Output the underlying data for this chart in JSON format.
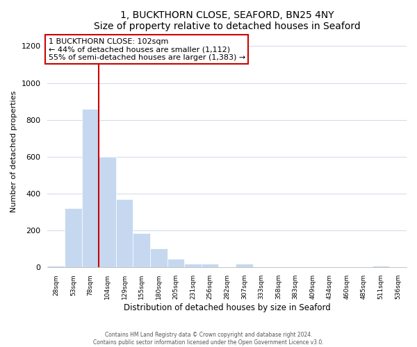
{
  "title": "1, BUCKTHORN CLOSE, SEAFORD, BN25 4NY",
  "subtitle": "Size of property relative to detached houses in Seaford",
  "xlabel": "Distribution of detached houses by size in Seaford",
  "ylabel": "Number of detached properties",
  "bar_labels": [
    "28sqm",
    "53sqm",
    "78sqm",
    "104sqm",
    "129sqm",
    "155sqm",
    "180sqm",
    "205sqm",
    "231sqm",
    "256sqm",
    "282sqm",
    "307sqm",
    "333sqm",
    "358sqm",
    "383sqm",
    "409sqm",
    "434sqm",
    "460sqm",
    "485sqm",
    "511sqm",
    "536sqm"
  ],
  "bar_values": [
    10,
    320,
    860,
    600,
    370,
    185,
    103,
    45,
    20,
    20,
    0,
    20,
    0,
    0,
    0,
    0,
    0,
    0,
    0,
    10,
    0
  ],
  "bar_color": "#c5d8f0",
  "bar_edge_color": "#c5d8f0",
  "property_line_x": 2.5,
  "property_line_color": "#cc0000",
  "ylim": [
    0,
    1260
  ],
  "yticks": [
    0,
    200,
    400,
    600,
    800,
    1000,
    1200
  ],
  "annotation_title": "1 BUCKTHORN CLOSE: 102sqm",
  "annotation_line1": "← 44% of detached houses are smaller (1,112)",
  "annotation_line2": "55% of semi-detached houses are larger (1,383) →",
  "annotation_box_color": "#ffffff",
  "annotation_box_edge_color": "#cc0000",
  "footer_line1": "Contains HM Land Registry data © Crown copyright and database right 2024.",
  "footer_line2": "Contains public sector information licensed under the Open Government Licence v3.0.",
  "background_color": "#ffffff",
  "grid_color": "#d0d8e8"
}
